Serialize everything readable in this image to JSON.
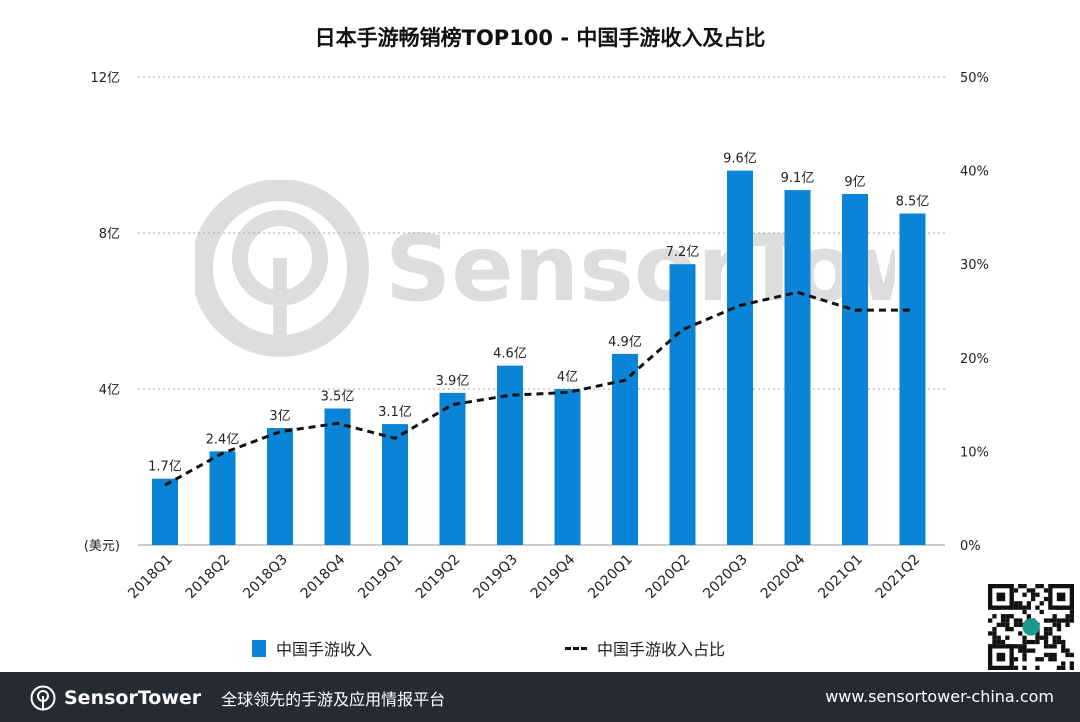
{
  "chart_data": {
    "type": "bar",
    "title": "日本手游畅销榜TOP100 - 中国手游收入及占比",
    "categories": [
      "2018Q1",
      "2018Q2",
      "2018Q3",
      "2018Q4",
      "2019Q1",
      "2019Q2",
      "2019Q3",
      "2019Q4",
      "2020Q1",
      "2020Q2",
      "2020Q3",
      "2020Q4",
      "2021Q1",
      "2021Q2"
    ],
    "series": [
      {
        "name": "中国手游收入",
        "type": "bar",
        "axis": "left",
        "color": "#0a84d6",
        "values": [
          1.7,
          2.4,
          3,
          3.5,
          3.1,
          3.9,
          4.6,
          4,
          4.9,
          7.2,
          9.6,
          9.1,
          9,
          8.5
        ],
        "labels": [
          "1.7亿",
          "2.4亿",
          "3亿",
          "3.5亿",
          "3.1亿",
          "3.9亿",
          "4.6亿",
          "4亿",
          "4.9亿",
          "7.2亿",
          "9.6亿",
          "9.1亿",
          "9亿",
          "8.5亿"
        ]
      },
      {
        "name": "中国手游收入占比",
        "type": "line",
        "style": "dashed",
        "axis": "right",
        "color": "#111111",
        "values": [
          6.4,
          9.8,
          12.1,
          13.0,
          11.4,
          15.0,
          16.0,
          16.3,
          17.6,
          23.0,
          25.6,
          27.0,
          25.1,
          25.1
        ]
      }
    ],
    "left_axis": {
      "range": [
        0,
        12
      ],
      "ticks": [
        0,
        4,
        8,
        12
      ],
      "tick_labels": [
        "(美元)",
        "4亿",
        "8亿",
        "12亿"
      ]
    },
    "right_axis": {
      "range": [
        0,
        50
      ],
      "ticks": [
        0,
        10,
        20,
        30,
        40,
        50
      ],
      "tick_labels": [
        "0%",
        "10%",
        "20%",
        "30%",
        "40%",
        "50%"
      ]
    },
    "grid": "horizontal dotted",
    "legend_placement": "bottom"
  },
  "watermark": "SensorTower",
  "footer": {
    "brand": "SensorTower",
    "slogan": "全球领先的手游及应用情报平台",
    "url": "www.sensortower-china.com"
  }
}
